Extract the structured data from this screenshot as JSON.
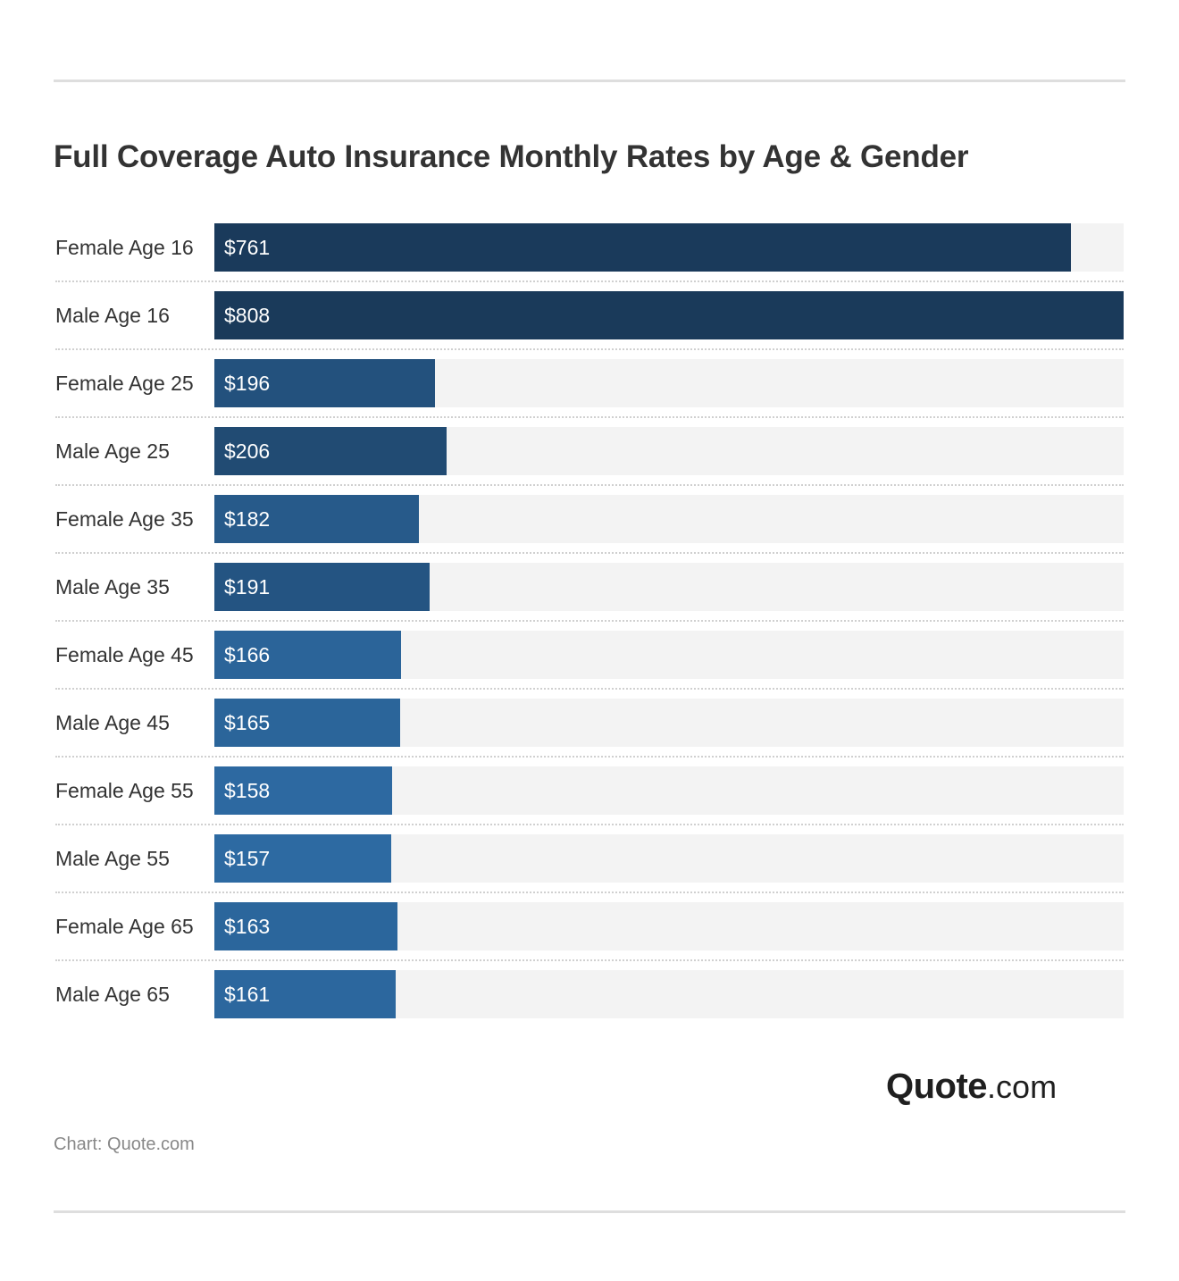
{
  "title": "Full Coverage Auto Insurance Monthly Rates by Age & Gender",
  "logo": {
    "main": "Quote",
    "tld": ".com"
  },
  "source": "Chart: Quote.com",
  "colors": {
    "track": "#f3f3f3",
    "bar_dark": "#1a3a5a",
    "bar_light": "#2d6aa2"
  },
  "chart_data": {
    "type": "bar",
    "orientation": "horizontal",
    "title": "Full Coverage Auto Insurance Monthly Rates by Age & Gender",
    "value_prefix": "$",
    "categories": [
      "Female Age 16",
      "Male Age 16",
      "Female Age 25",
      "Male Age 25",
      "Female Age 35",
      "Male Age 35",
      "Female Age 45",
      "Male Age 45",
      "Female Age 55",
      "Male Age 55",
      "Female Age 65",
      "Male Age 65"
    ],
    "values": [
      761,
      808,
      196,
      206,
      182,
      191,
      166,
      165,
      158,
      157,
      163,
      161
    ],
    "value_labels": [
      "$761",
      "$808",
      "$196",
      "$206",
      "$182",
      "$191",
      "$166",
      "$165",
      "$158",
      "$157",
      "$163",
      "$161"
    ],
    "xlim": [
      0,
      808
    ],
    "grid": false,
    "legend": "none"
  }
}
